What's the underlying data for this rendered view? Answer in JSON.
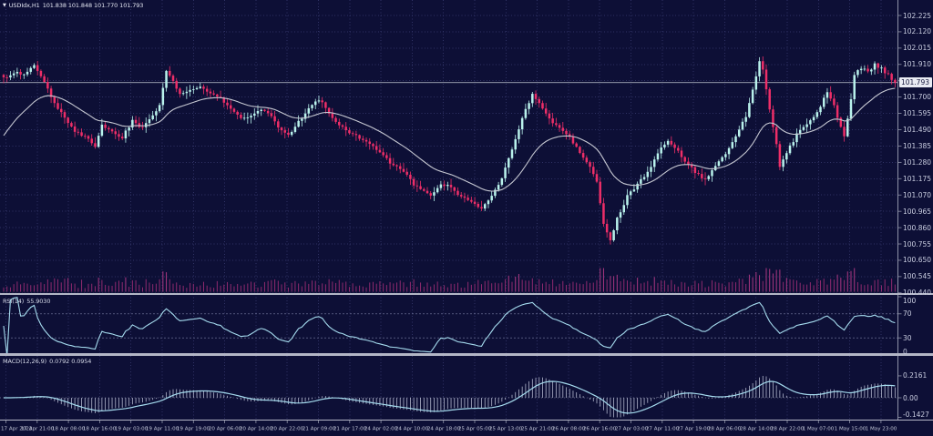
{
  "header": {
    "symbol": "USDIdx,H1",
    "ohlc": "101.838 101.848 101.770 101.793"
  },
  "icons": {
    "symbol_marker": "▼"
  },
  "quote": {
    "last": "101.793"
  },
  "panels": {
    "rsi": {
      "label": "RSI(14)",
      "value": "55.9030",
      "axis": [
        "100",
        "70",
        "30",
        "0"
      ],
      "axis_values": [
        100,
        70,
        30,
        0
      ],
      "levels": [
        70,
        30
      ]
    },
    "macd": {
      "label": "MACD(12,26,9)",
      "values": "0.0792 0.0954",
      "axis_max": "0.2161",
      "axis_mid": "0.00",
      "axis_min": "-0.1427"
    }
  },
  "colors": {
    "bg": "#0d0f36",
    "grid": "#2f3264",
    "bull": "#b9f2ec",
    "bear": "#ee2e68",
    "ma": "#c6c8d2",
    "volume": "#8e2a6e",
    "volume_hi": "#a93781",
    "rsi": "#a5dbee",
    "macd_hist": "#c3c8dc",
    "macd_signal": "#a5dbee",
    "level": "#7d81a4",
    "price_line": "#c0c3d0",
    "axis_line": "#8f93a8",
    "axis_text": "#c9cde0",
    "separator": "#b3b6c6",
    "tag_bg": "#e9ebf3",
    "tag_text": "#13153a"
  },
  "chart_data": {
    "type": "candlestick",
    "symbol": "USDIdx",
    "timeframe": "H1",
    "title": "USDIdx,H1 101.838 101.848 101.770 101.793",
    "last": {
      "open": 101.838,
      "high": 101.848,
      "low": 101.77,
      "close": 101.793
    },
    "ylim": [
      100.44,
      102.225
    ],
    "y_step": 0.105,
    "bars": 264,
    "seed": 20230501,
    "y_labels": [
      "102.225",
      "102.120",
      "102.015",
      "101.910",
      "101.805",
      "101.700",
      "101.595",
      "101.490",
      "101.385",
      "101.280",
      "101.175",
      "101.070",
      "100.965",
      "100.860",
      "100.755",
      "100.650",
      "100.545",
      "100.440"
    ],
    "x_labels": [
      "17 Apr 2023",
      "17 Apr 21:00",
      "18 Apr 08:00",
      "18 Apr 16:00",
      "19 Apr 03:00",
      "19 Apr 11:00",
      "19 Apr 19:00",
      "20 Apr 06:00",
      "20 Apr 14:00",
      "20 Apr 22:00",
      "21 Apr 09:00",
      "21 Apr 17:00",
      "24 Apr 02:00",
      "24 Apr 10:00",
      "24 Apr 18:00",
      "25 Apr 05:00",
      "25 Apr 13:00",
      "25 Apr 21:00",
      "26 Apr 08:00",
      "26 Apr 16:00",
      "27 Apr 03:00",
      "27 Apr 11:00",
      "27 Apr 19:00",
      "28 Apr 06:00",
      "28 Apr 14:00",
      "28 Apr 22:00",
      "1 May 07:00",
      "1 May 15:00",
      "1 May 23:00"
    ],
    "price_path": [
      [
        0,
        101.82
      ],
      [
        3,
        101.86
      ],
      [
        6,
        101.84
      ],
      [
        9,
        101.9
      ],
      [
        12,
        101.8
      ],
      [
        15,
        101.66
      ],
      [
        18,
        101.56
      ],
      [
        21,
        101.48
      ],
      [
        24,
        101.45
      ],
      [
        27,
        101.38
      ],
      [
        29,
        101.52
      ],
      [
        32,
        101.48
      ],
      [
        35,
        101.44
      ],
      [
        38,
        101.55
      ],
      [
        41,
        101.5
      ],
      [
        44,
        101.58
      ],
      [
        46,
        101.64
      ],
      [
        48,
        101.86
      ],
      [
        50,
        101.8
      ],
      [
        52,
        101.72
      ],
      [
        55,
        101.74
      ],
      [
        58,
        101.76
      ],
      [
        61,
        101.73
      ],
      [
        64,
        101.7
      ],
      [
        67,
        101.62
      ],
      [
        70,
        101.56
      ],
      [
        73,
        101.58
      ],
      [
        76,
        101.62
      ],
      [
        79,
        101.57
      ],
      [
        82,
        101.48
      ],
      [
        84,
        101.45
      ],
      [
        87,
        101.54
      ],
      [
        90,
        101.62
      ],
      [
        92,
        101.68
      ],
      [
        94,
        101.66
      ],
      [
        97,
        101.57
      ],
      [
        100,
        101.5
      ],
      [
        103,
        101.46
      ],
      [
        106,
        101.42
      ],
      [
        109,
        101.38
      ],
      [
        112,
        101.32
      ],
      [
        115,
        101.26
      ],
      [
        118,
        101.22
      ],
      [
        121,
        101.14
      ],
      [
        124,
        101.09
      ],
      [
        126,
        101.07
      ],
      [
        129,
        101.14
      ],
      [
        132,
        101.12
      ],
      [
        135,
        101.06
      ],
      [
        138,
        101.02
      ],
      [
        141,
        100.98
      ],
      [
        144,
        101.06
      ],
      [
        147,
        101.18
      ],
      [
        150,
        101.36
      ],
      [
        153,
        101.56
      ],
      [
        156,
        101.72
      ],
      [
        158,
        101.66
      ],
      [
        161,
        101.56
      ],
      [
        164,
        101.5
      ],
      [
        167,
        101.44
      ],
      [
        170,
        101.35
      ],
      [
        173,
        101.25
      ],
      [
        175,
        101.15
      ],
      [
        177,
        100.88
      ],
      [
        179,
        100.78
      ],
      [
        181,
        100.92
      ],
      [
        184,
        101.06
      ],
      [
        187,
        101.14
      ],
      [
        190,
        101.22
      ],
      [
        193,
        101.34
      ],
      [
        196,
        101.42
      ],
      [
        198,
        101.38
      ],
      [
        201,
        101.28
      ],
      [
        204,
        101.22
      ],
      [
        207,
        101.17
      ],
      [
        210,
        101.26
      ],
      [
        213,
        101.34
      ],
      [
        216,
        101.44
      ],
      [
        219,
        101.58
      ],
      [
        221,
        101.74
      ],
      [
        223,
        101.93
      ],
      [
        224,
        101.88
      ],
      [
        226,
        101.62
      ],
      [
        228,
        101.4
      ],
      [
        229,
        101.26
      ],
      [
        231,
        101.34
      ],
      [
        234,
        101.46
      ],
      [
        237,
        101.52
      ],
      [
        240,
        101.6
      ],
      [
        243,
        101.73
      ],
      [
        245,
        101.64
      ],
      [
        247,
        101.5
      ],
      [
        248,
        101.45
      ],
      [
        250,
        101.68
      ],
      [
        251,
        101.85
      ],
      [
        253,
        101.89
      ],
      [
        255,
        101.86
      ],
      [
        257,
        101.91
      ],
      [
        259,
        101.88
      ],
      [
        261,
        101.84
      ],
      [
        263,
        101.793
      ]
    ],
    "indicators": [
      {
        "type": "ma",
        "period": 24,
        "style": "line"
      },
      {
        "type": "rsi",
        "period": 14,
        "last": 55.903,
        "levels": [
          70,
          30
        ],
        "range": [
          0,
          100
        ]
      },
      {
        "type": "macd",
        "fast": 12,
        "slow": 26,
        "signal": 9,
        "last_macd": 0.0792,
        "last_signal": 0.0954,
        "range": [
          -0.1427,
          0.2161
        ]
      }
    ],
    "volume": {
      "present": true
    }
  }
}
